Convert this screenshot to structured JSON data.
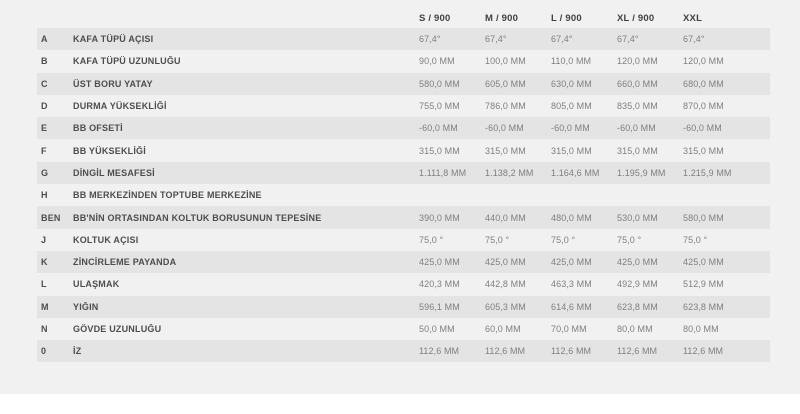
{
  "table": {
    "size_headers": [
      "S / 900",
      "M / 900",
      "L / 900",
      "XL / 900",
      "XXL"
    ],
    "rows": [
      {
        "letter": "A",
        "label": "KAFA TÜPÜ AÇISI",
        "values": [
          "67,4°",
          "67,4°",
          "67,4°",
          "67,4°",
          "67,4°"
        ]
      },
      {
        "letter": "B",
        "label": "KAFA TÜPÜ UZUNLUĞU",
        "values": [
          "90,0 MM",
          "100,0 MM",
          "110,0 MM",
          "120,0 MM",
          "120,0 MM"
        ]
      },
      {
        "letter": "C",
        "label": "ÜST BORU YATAY",
        "values": [
          "580,0 MM",
          "605,0 MM",
          "630,0 MM",
          "660,0 MM",
          "680,0 MM"
        ]
      },
      {
        "letter": "D",
        "label": "DURMA YÜKSEKLİĞİ",
        "values": [
          "755,0 MM",
          "786,0 MM",
          "805,0 MM",
          "835,0 MM",
          "870,0 MM"
        ]
      },
      {
        "letter": "E",
        "label": "BB OFSETİ",
        "values": [
          "-60,0 MM",
          "-60,0 MM",
          "-60,0 MM",
          "-60,0 MM",
          "-60,0 MM"
        ]
      },
      {
        "letter": "F",
        "label": "BB YÜKSEKLİĞİ",
        "values": [
          "315,0 MM",
          "315,0 MM",
          "315,0 MM",
          "315,0 MM",
          "315,0 MM"
        ]
      },
      {
        "letter": "G",
        "label": "DİNGİL MESAFESİ",
        "values": [
          "1.111,8 MM",
          "1.138,2 MM",
          "1.164,6 MM",
          "1.195,9 MM",
          "1.215,9 MM"
        ]
      },
      {
        "letter": "H",
        "label": "BB MERKEZİNDEN TOPTUBE MERKEZİNE",
        "values": [
          "",
          "",
          "",
          "",
          ""
        ]
      },
      {
        "letter": "BEN",
        "label": "BB'NİN ORTASINDAN KOLTUK BORUSUNUN TEPESİNE",
        "values": [
          "390,0 MM",
          "440,0 MM",
          "480,0 MM",
          "530,0 MM",
          "580,0 MM"
        ]
      },
      {
        "letter": "J",
        "label": "KOLTUK AÇISI",
        "values": [
          "75,0 °",
          "75,0 °",
          "75,0 °",
          "75,0 °",
          "75,0 °"
        ]
      },
      {
        "letter": "K",
        "label": "ZİNCİRLEME PAYANDA",
        "values": [
          "425,0 MM",
          "425,0 MM",
          "425,0 MM",
          "425,0 MM",
          "425,0 MM"
        ]
      },
      {
        "letter": "L",
        "label": "ULAŞMAK",
        "values": [
          "420,3 MM",
          "442,8 MM",
          "463,3 MM",
          "492,9 MM",
          "512,9 MM"
        ]
      },
      {
        "letter": "M",
        "label": "YIĞIN",
        "values": [
          "596,1 MM",
          "605,3 MM",
          "614,6 MM",
          "623,8 MM",
          "623,8 MM"
        ]
      },
      {
        "letter": "N",
        "label": "GÖVDE UZUNLUĞU",
        "values": [
          "50,0 MM",
          "60,0 MM",
          "70,0 MM",
          "80,0 MM",
          "80,0 MM"
        ]
      },
      {
        "letter": "0",
        "label": "İZ",
        "values": [
          "112,6 MM",
          "112,6 MM",
          "112,6 MM",
          "112,6 MM",
          "112,6 MM"
        ]
      }
    ],
    "colors": {
      "panel_background": "#f1f1f2",
      "stripe": "#e4e4e5",
      "header_text": "#414141",
      "label_text": "#4d4d4d",
      "value_text": "#7f7f7f"
    }
  }
}
